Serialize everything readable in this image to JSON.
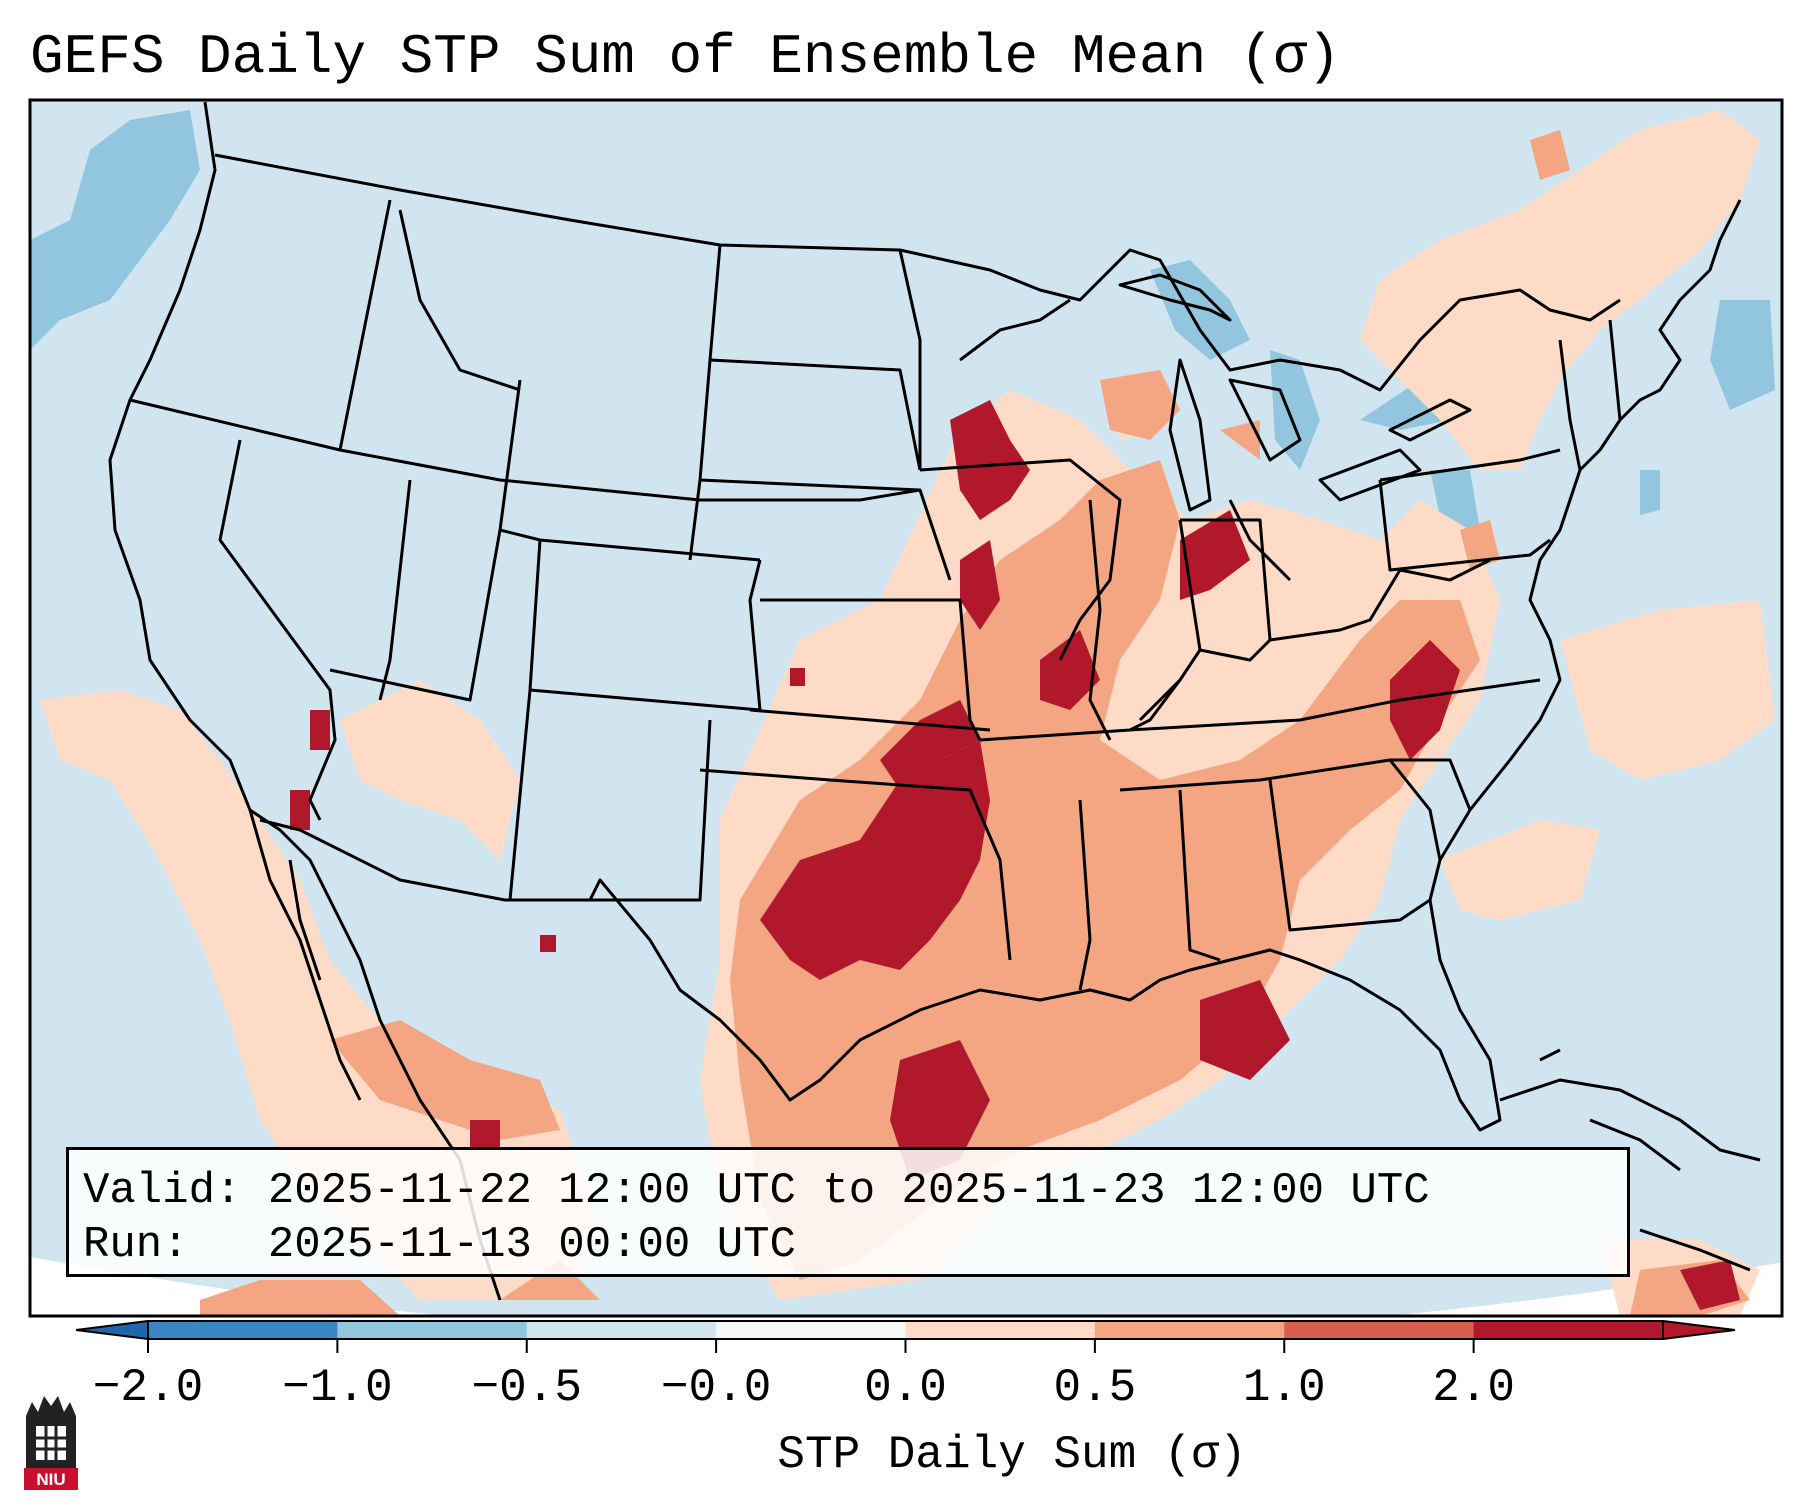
{
  "title": "GEFS Daily STP Sum of Ensemble Mean (σ)",
  "info": {
    "valid_label": "Valid:",
    "valid_text": "2025-11-22 12:00 UTC to 2025-11-23 12:00 UTC",
    "run_label": "Run:",
    "run_text": "2025-11-13 00:00 UTC"
  },
  "colorbar": {
    "label": "STP Daily Sum (σ)",
    "ticks": [
      "−2.0",
      "−1.0",
      "−0.5",
      "−0.0",
      "0.0",
      "0.5",
      "1.0",
      "2.0"
    ],
    "colors": [
      "#3a86c2",
      "#92c5de",
      "#d1e5f0",
      "#f7f7f7",
      "#fddbc7",
      "#f4a582",
      "#d6604d",
      "#b2182b"
    ],
    "under_color": "#2166ac",
    "over_color": "#b2182b"
  },
  "map": {
    "background_color": "#d1e5f0",
    "region": "Contiguous United States, northern Mexico, Gulf of Mexico"
  },
  "logo": {
    "text": "NIU",
    "icon": "niu-castle-logo-icon"
  }
}
